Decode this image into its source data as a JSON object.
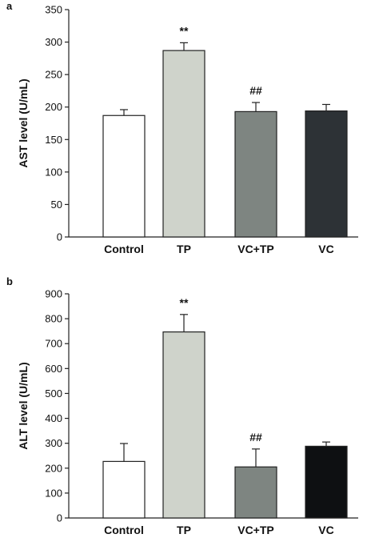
{
  "chart_data": [
    {
      "panel": "a",
      "type": "bar",
      "ylabel": "AST level (U/mL)",
      "ylim": [
        0,
        350
      ],
      "yticks": [
        0,
        50,
        100,
        150,
        200,
        250,
        300,
        350
      ],
      "categories": [
        "Control",
        "TP",
        "VC+TP",
        "VC"
      ],
      "values": [
        187,
        287,
        193,
        194
      ],
      "errors": [
        9,
        12,
        14,
        10
      ],
      "annotations": [
        "",
        "**",
        "##",
        ""
      ],
      "colors": [
        "#ffffff",
        "#cfd3cb",
        "#7e8581",
        "#2d3236"
      ]
    },
    {
      "panel": "b",
      "type": "bar",
      "ylabel": "ALT level (U/mL)",
      "ylim": [
        0,
        900
      ],
      "yticks": [
        0,
        100,
        200,
        300,
        400,
        500,
        600,
        700,
        800,
        900
      ],
      "categories": [
        "Control",
        "TP",
        "VC+TP",
        "VC"
      ],
      "values": [
        227,
        747,
        205,
        288
      ],
      "errors": [
        72,
        70,
        72,
        17
      ],
      "annotations": [
        "",
        "**",
        "##",
        ""
      ],
      "colors": [
        "#ffffff",
        "#cfd3cb",
        "#7e8581",
        "#0e1012"
      ]
    }
  ]
}
